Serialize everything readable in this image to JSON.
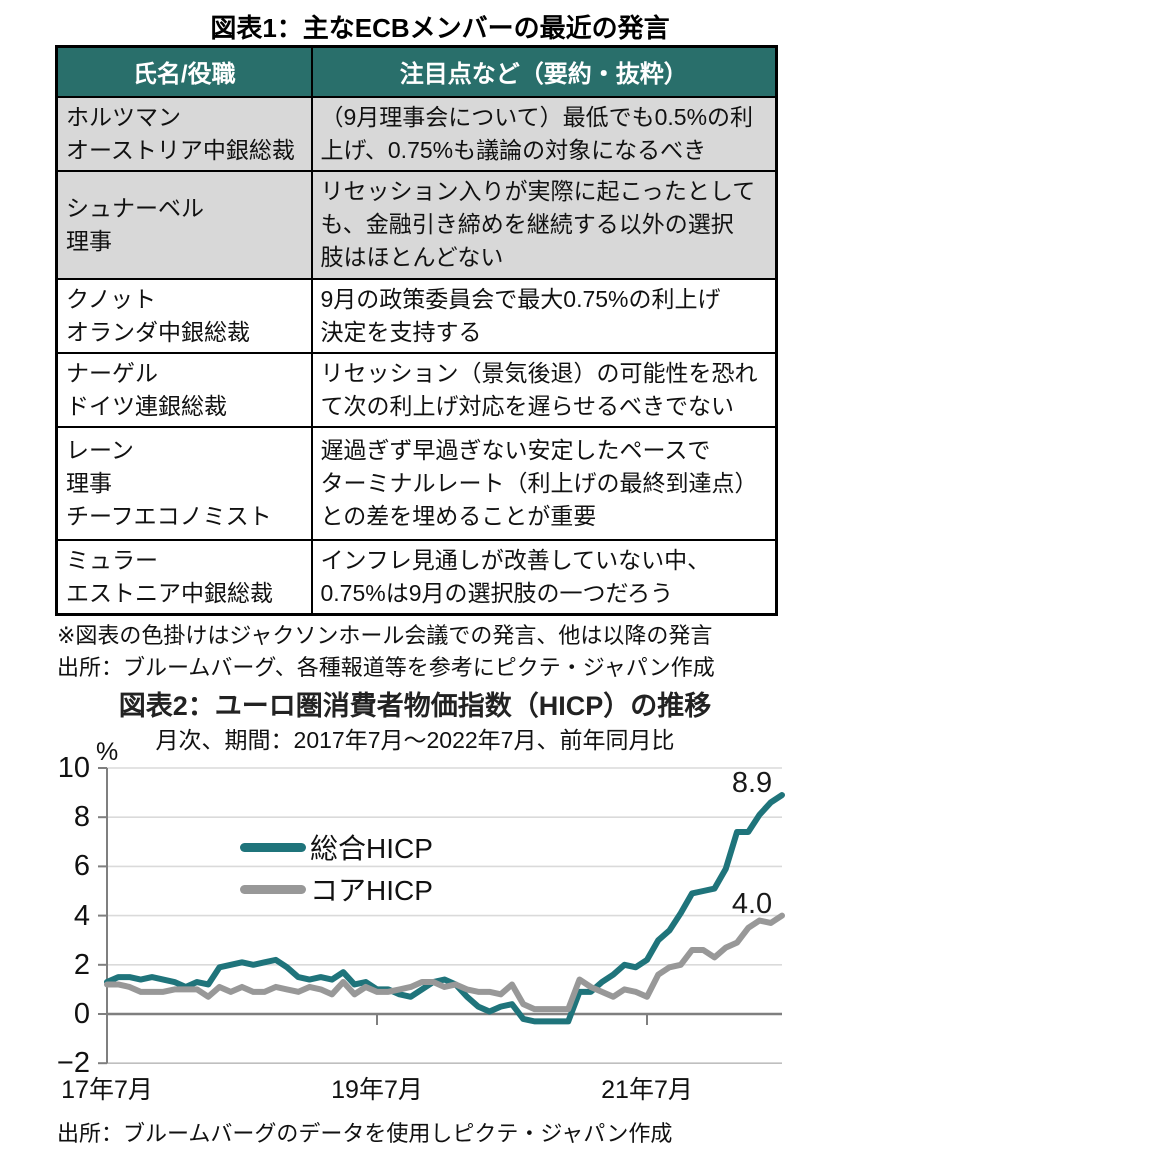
{
  "page": {
    "fig1_title": "図表1：主なECBメンバーの最近の発言",
    "note_line1": "※図表の色掛けはジャクソンホール会議での発言、他は以降の発言",
    "note_line2": "出所：ブルームバーグ、各種報道等を参考にピクテ・ジャパン作成"
  },
  "table": {
    "headers": [
      "氏名/役職",
      "注目点など（要約・抜粋）"
    ],
    "header_bg": "#296F6B",
    "shaded_bg": "#D8D8D8",
    "shading_meaning": "色掛けはジャクソンホール会議での発言",
    "rows": [
      {
        "speaker": "ホルツマン\nオーストリア中銀総裁",
        "shaded": true,
        "comment": "（9月理事会について）最低でも0.5%の利\n上げ、0.75%も議論の対象になるべき"
      },
      {
        "speaker": "シュナーベル\n理事",
        "shaded": true,
        "comment": "リセッション入りが実際に起こったとして\nも、金融引き締めを継続する以外の選択\n肢はほとんどない"
      },
      {
        "speaker": "クノット\nオランダ中銀総裁",
        "shaded": false,
        "comment": "9月の政策委員会で最大0.75%の利上げ\n決定を支持する"
      },
      {
        "speaker": "ナーゲル\nドイツ連銀総裁",
        "shaded": false,
        "comment": "リセッション（景気後退）の可能性を恐れ\nて次の利上げ対応を遅らせるべきでない"
      },
      {
        "speaker": "レーン\n理事\nチーフエコノミスト",
        "shaded": false,
        "comment": "遅過ぎず早過ぎない安定したペースで\nターミナルレート（利上げの最終到達点）\nとの差を埋めることが重要"
      },
      {
        "speaker": "ミュラー\nエストニア中銀総裁",
        "shaded": false,
        "comment": "インフレ見通しが改善していない中、\n0.75%は9月の選択肢の一つだろう"
      }
    ]
  },
  "chart_data": {
    "type": "line",
    "title": "図表2：ユーロ圏消費者物価指数（HICP）の推移",
    "subtitle": "月次、期間：2017年7月～2022年7月、前年同月比",
    "unit_label": "%",
    "ylim": [
      -2,
      10
    ],
    "y_ticks": [
      10,
      8,
      6,
      4,
      2,
      0,
      -2
    ],
    "x_ticks": [
      {
        "label": "17年7月",
        "month_index": 0
      },
      {
        "label": "19年7月",
        "month_index": 24
      },
      {
        "label": "21年7月",
        "month_index": 48
      }
    ],
    "x_range": "2017年7月〜2022年7月（月次、61か月）",
    "grid": "horizontal",
    "legend_position": "upper-left-inside",
    "series": [
      {
        "name": "総合HICP",
        "color": "#1F747B",
        "end_label": "8.9",
        "values": [
          1.3,
          1.5,
          1.5,
          1.4,
          1.5,
          1.4,
          1.3,
          1.1,
          1.3,
          1.2,
          1.9,
          2.0,
          2.1,
          2.0,
          2.1,
          2.2,
          1.9,
          1.5,
          1.4,
          1.5,
          1.4,
          1.7,
          1.2,
          1.3,
          1.0,
          1.0,
          0.8,
          0.7,
          1.0,
          1.3,
          1.4,
          1.2,
          0.7,
          0.3,
          0.1,
          0.3,
          0.4,
          -0.2,
          -0.3,
          -0.3,
          -0.3,
          -0.3,
          0.9,
          0.9,
          1.3,
          1.6,
          2.0,
          1.9,
          2.2,
          3.0,
          3.4,
          4.1,
          4.9,
          5.0,
          5.1,
          5.9,
          7.4,
          7.4,
          8.1,
          8.6,
          8.9
        ]
      },
      {
        "name": "コアHICP",
        "color": "#989898",
        "end_label": "4.0",
        "values": [
          1.2,
          1.2,
          1.1,
          0.9,
          0.9,
          0.9,
          1.0,
          1.0,
          1.0,
          0.7,
          1.1,
          0.9,
          1.1,
          0.9,
          0.9,
          1.1,
          1.0,
          0.9,
          1.1,
          1.0,
          0.8,
          1.3,
          0.8,
          1.1,
          0.9,
          0.9,
          1.0,
          1.1,
          1.3,
          1.3,
          1.1,
          1.2,
          1.0,
          0.9,
          0.9,
          0.8,
          1.2,
          0.4,
          0.2,
          0.2,
          0.2,
          0.2,
          1.4,
          1.1,
          0.9,
          0.7,
          1.0,
          0.9,
          0.7,
          1.6,
          1.9,
          2.0,
          2.6,
          2.6,
          2.3,
          2.7,
          2.9,
          3.5,
          3.8,
          3.7,
          4.0
        ]
      }
    ],
    "source": "出所：ブルームバーグのデータを使用しピクテ・ジャパン作成"
  }
}
